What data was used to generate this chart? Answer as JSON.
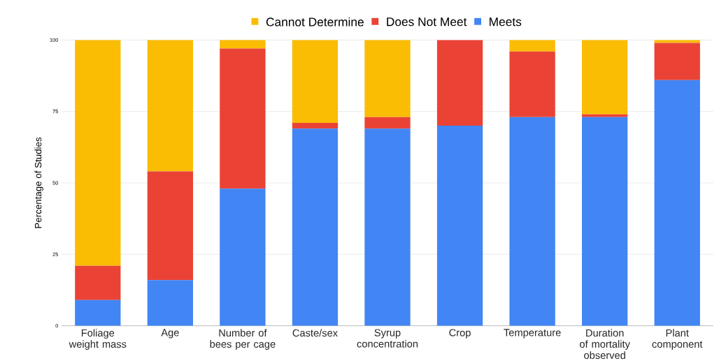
{
  "chart_data": {
    "type": "bar",
    "stacked": true,
    "ylabel": "Percentage of Studies",
    "categories": [
      "Foliage weight mass",
      "Age",
      "Number of bees per cage",
      "Caste/sex",
      "Syrup concentration",
      "Crop",
      "Temperature",
      "Duration of mortality observed",
      "Plant component"
    ],
    "series": [
      {
        "name": "Meets",
        "color": "#4285f4",
        "values": [
          9,
          16,
          48,
          69,
          69,
          70,
          73,
          73,
          86
        ]
      },
      {
        "name": "Does Not Meet",
        "color": "#ea4335",
        "values": [
          12,
          38,
          49,
          2,
          4,
          30,
          23,
          1,
          13
        ]
      },
      {
        "name": "Cannot Determine",
        "color": "#fbbc04",
        "values": [
          79,
          46,
          3,
          29,
          27,
          0,
          4,
          26,
          1
        ]
      }
    ],
    "ylim": [
      0,
      100
    ],
    "yticks": [
      0,
      25,
      50,
      75,
      100
    ],
    "grid": "y",
    "legend": "top"
  }
}
